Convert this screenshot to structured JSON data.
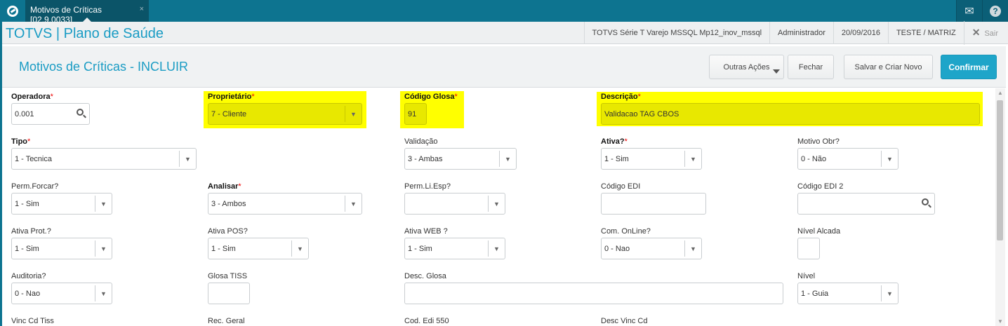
{
  "topbar": {
    "tab_label": "Motivos de Críticas [02.9.0033]",
    "tab_close": "×",
    "icons": [
      "totvs-logo-icon",
      "mail-icon",
      "help-icon"
    ]
  },
  "header": {
    "brand": "TOTVS | Plano de Saúde",
    "environment": "TOTVS Série T Varejo MSSQL Mp12_inov_mssql",
    "user": "Administrador",
    "date": "20/09/2016",
    "company": "TESTE / MATRIZ",
    "logout": "Sair"
  },
  "page": {
    "title": "Motivos de Críticas - INCLUIR"
  },
  "toolbar": {
    "other_actions": "Outras Ações",
    "close": "Fechar",
    "save_new": "Salvar e Criar Novo",
    "confirm": "Confirmar"
  },
  "colors": {
    "accent": "#1a9cc4",
    "topbar": "#0d7490",
    "highlight": "#ffff00",
    "confirm": "#1ea5c9"
  },
  "form": {
    "fields": [
      {
        "label": "Operadora",
        "required": true,
        "type": "lookup",
        "value": "0.001"
      },
      {
        "label": "Proprietário",
        "required": true,
        "type": "select",
        "value": "7 - Cliente",
        "highlighted": true
      },
      {
        "label": "Código Glosa",
        "required": true,
        "type": "text",
        "value": "91",
        "highlighted": true
      },
      {
        "label": "Descrição",
        "required": true,
        "type": "text",
        "value": "Validacao TAG CBOS",
        "highlighted": true
      },
      {
        "label": "Tipo",
        "required": true,
        "type": "select",
        "value": "1 - Tecnica"
      },
      {
        "label": "Validação",
        "required": false,
        "type": "select",
        "value": "3 - Ambas"
      },
      {
        "label": "Ativa?",
        "required": true,
        "type": "select",
        "value": "1 - Sim"
      },
      {
        "label": "Motivo Obr?",
        "required": false,
        "type": "select",
        "value": "0 - Não"
      },
      {
        "label": "Perm.Forcar?",
        "required": false,
        "type": "select",
        "value": "1 - Sim"
      },
      {
        "label": "Analisar",
        "required": true,
        "type": "select",
        "value": "3 - Ambos"
      },
      {
        "label": "Perm.Li.Esp?",
        "required": false,
        "type": "select",
        "value": ""
      },
      {
        "label": "Código EDI",
        "required": false,
        "type": "text",
        "value": ""
      },
      {
        "label": "Código EDI 2",
        "required": false,
        "type": "lookup",
        "value": ""
      },
      {
        "label": "Ativa Prot.?",
        "required": false,
        "type": "select",
        "value": "1 - Sim"
      },
      {
        "label": "Ativa POS?",
        "required": false,
        "type": "select",
        "value": "1 - Sim"
      },
      {
        "label": "Ativa WEB ?",
        "required": false,
        "type": "select",
        "value": "1 - Sim"
      },
      {
        "label": "Com. OnLine?",
        "required": false,
        "type": "select",
        "value": "0 - Nao"
      },
      {
        "label": "Nível Alcada",
        "required": false,
        "type": "text",
        "value": ""
      },
      {
        "label": "Auditoria?",
        "required": false,
        "type": "select",
        "value": "0 - Nao"
      },
      {
        "label": "Glosa TISS",
        "required": false,
        "type": "text",
        "value": ""
      },
      {
        "label": "Desc. Glosa",
        "required": false,
        "type": "text",
        "value": ""
      },
      {
        "label": "Nível",
        "required": false,
        "type": "select",
        "value": "1 - Guia"
      },
      {
        "label": "Vinc Cd Tiss",
        "required": false,
        "type": "label-only"
      },
      {
        "label": "Rec. Geral",
        "required": false,
        "type": "label-only"
      },
      {
        "label": "Cod. Edi 550",
        "required": false,
        "type": "label-only"
      },
      {
        "label": "Desc Vinc Cd",
        "required": false,
        "type": "label-only"
      }
    ]
  }
}
